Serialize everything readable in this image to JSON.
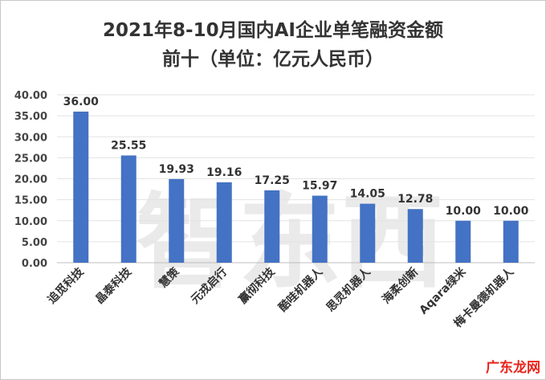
{
  "chart_data": {
    "type": "bar",
    "title_line1": "2021年8-10月国内AI企业单笔融资金额",
    "title_line2": "前十（单位：亿元人民币）",
    "categories": [
      "追觅科技",
      "晶泰科技",
      "慧策",
      "元戎启行",
      "赢彻科技",
      "酷哇机器人",
      "思灵机器人",
      "海柔创新",
      "Aqara绿米",
      "梅卡曼德机器人"
    ],
    "values": [
      36.0,
      25.55,
      19.93,
      19.16,
      17.25,
      15.97,
      14.05,
      12.78,
      10.0,
      10.0
    ],
    "y_ticks": [
      "0.00",
      "5.00",
      "10.00",
      "15.00",
      "20.00",
      "25.00",
      "30.00",
      "35.00",
      "40.00"
    ],
    "ylim": [
      0,
      40
    ],
    "grid": true,
    "bar_color": "#4472c4"
  },
  "watermark": "智东西",
  "corner_logo": "广东龙网"
}
